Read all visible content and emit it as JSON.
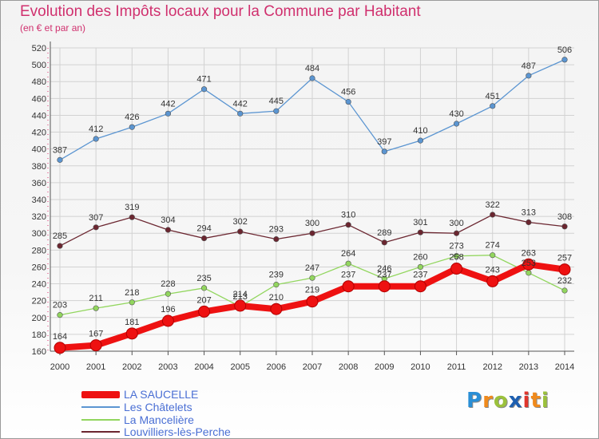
{
  "title": "Evolution des Impôts locaux pour la Commune par Habitant",
  "subtitle": "(en € et par an)",
  "logo": {
    "text": "Proxiti",
    "letters": [
      "P",
      "r",
      "o",
      "x",
      "i",
      "t",
      "i"
    ],
    "colors": [
      "#2a8fd6",
      "#f08a1c",
      "#9bc13c",
      "#1d5fb0",
      "#e0362c",
      "#f08a1c",
      "#9bc13c"
    ]
  },
  "chart_data": {
    "type": "line",
    "title": "Evolution des Impôts locaux pour la Commune par Habitant",
    "subtitle": "(en € et par an)",
    "xlabel": "",
    "ylabel": "",
    "ylim": [
      160,
      520
    ],
    "ytick_step": 20,
    "grid": true,
    "legend_position": "bottom-left",
    "x": [
      "2000",
      "2001",
      "2002",
      "2003",
      "2004",
      "2005",
      "2006",
      "2007",
      "2008",
      "2009",
      "2010",
      "2011",
      "2012",
      "2013",
      "2014"
    ],
    "series": [
      {
        "name": "Les Châtelets",
        "color": "#5b95d1",
        "values": [
          387,
          412,
          426,
          442,
          471,
          442,
          445,
          484,
          456,
          397,
          410,
          430,
          451,
          487,
          506
        ]
      },
      {
        "name": "Louvilliers-lès-Perche",
        "color": "#6b2630",
        "values": [
          285,
          307,
          319,
          304,
          294,
          302,
          293,
          300,
          310,
          289,
          301,
          300,
          322,
          313,
          308
        ]
      },
      {
        "name": "La Mancelière",
        "color": "#92d65e",
        "values": [
          203,
          211,
          218,
          228,
          235,
          213,
          239,
          247,
          264,
          246,
          260,
          273,
          274,
          253,
          232
        ]
      },
      {
        "name": "LA SAUCELLE",
        "color": "#ee1111",
        "highlight": true,
        "values": [
          164,
          167,
          181,
          196,
          207,
          214,
          210,
          219,
          237,
          237,
          237,
          258,
          243,
          263,
          257
        ]
      }
    ],
    "legend": [
      {
        "name": "LA SAUCELLE",
        "color": "#ee1111",
        "thick": true
      },
      {
        "name": "Les Châtelets",
        "color": "#5b95d1",
        "thick": false
      },
      {
        "name": "La Mancelière",
        "color": "#92d65e",
        "thick": false
      },
      {
        "name": "Louvilliers-lès-Perche",
        "color": "#6b2630",
        "thick": false
      }
    ]
  }
}
